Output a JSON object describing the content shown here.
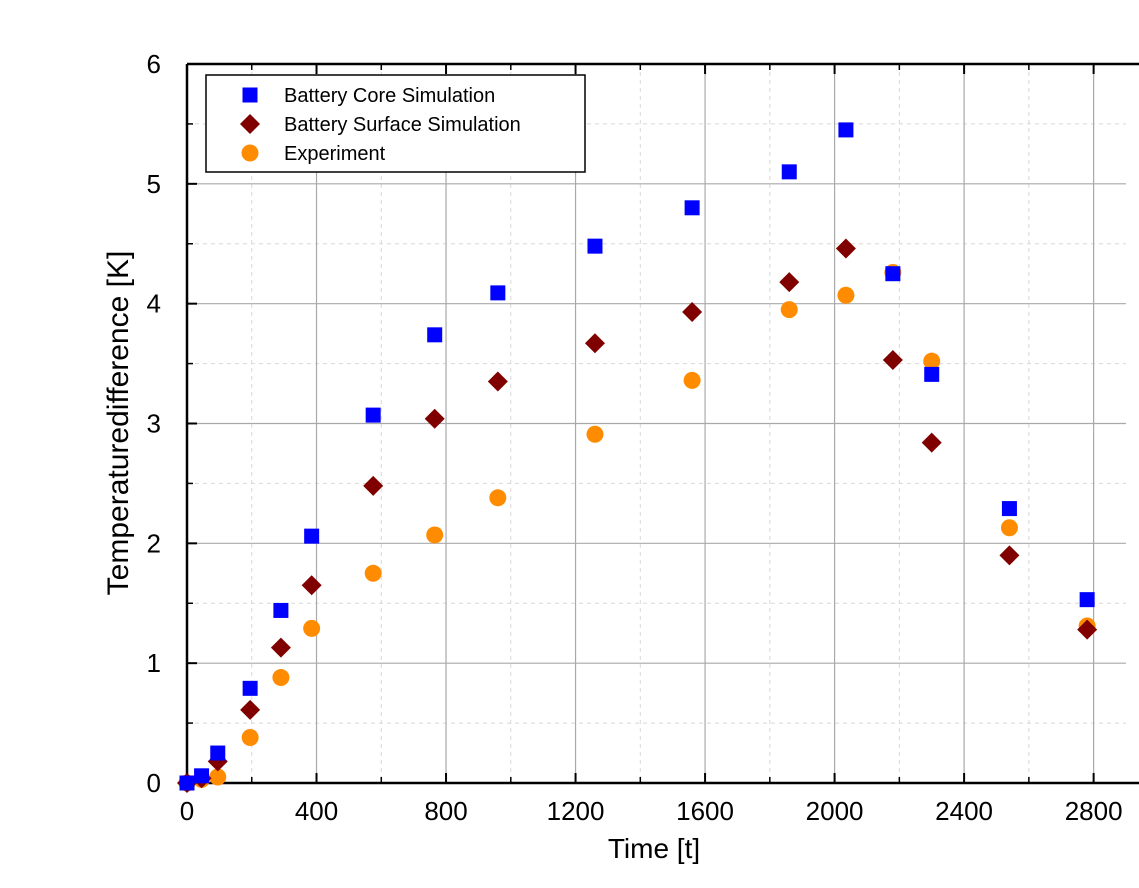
{
  "chart_data": {
    "type": "scatter",
    "title": "",
    "xlabel": "Time [t]",
    "ylabel": "Temperaturedifference [K]",
    "xlim": [
      0,
      2900
    ],
    "ylim": [
      0,
      6
    ],
    "xticks": [
      0,
      400,
      800,
      1200,
      1600,
      2000,
      2400,
      2800
    ],
    "yticks": [
      0,
      1,
      2,
      3,
      4,
      5,
      6
    ],
    "grid": true,
    "legend_position": "top-left",
    "series": [
      {
        "name": "Battery Core Simulation",
        "marker": "square",
        "color": "#0000ff",
        "points": [
          [
            0,
            0.0
          ],
          [
            45,
            0.06
          ],
          [
            95,
            0.25
          ],
          [
            195,
            0.79
          ],
          [
            290,
            1.44
          ],
          [
            385,
            2.06
          ],
          [
            575,
            3.07
          ],
          [
            765,
            3.74
          ],
          [
            960,
            4.09
          ],
          [
            1260,
            4.48
          ],
          [
            1560,
            4.8
          ],
          [
            1860,
            5.1
          ],
          [
            2035,
            5.45
          ],
          [
            2180,
            4.25
          ],
          [
            2300,
            3.41
          ],
          [
            2540,
            2.29
          ],
          [
            2780,
            1.53
          ]
        ]
      },
      {
        "name": "Battery Surface Simulation",
        "marker": "diamond",
        "color": "#800000",
        "points": [
          [
            0,
            0.0
          ],
          [
            45,
            0.04
          ],
          [
            95,
            0.18
          ],
          [
            195,
            0.61
          ],
          [
            290,
            1.13
          ],
          [
            385,
            1.65
          ],
          [
            575,
            2.48
          ],
          [
            765,
            3.04
          ],
          [
            960,
            3.35
          ],
          [
            1260,
            3.67
          ],
          [
            1560,
            3.93
          ],
          [
            1860,
            4.18
          ],
          [
            2035,
            4.46
          ],
          [
            2180,
            3.53
          ],
          [
            2300,
            2.84
          ],
          [
            2540,
            1.9
          ],
          [
            2780,
            1.28
          ]
        ]
      },
      {
        "name": "Experiment",
        "marker": "circle",
        "color": "#ff8c00",
        "points": [
          [
            0,
            0.0
          ],
          [
            45,
            0.03
          ],
          [
            95,
            0.05
          ],
          [
            195,
            0.38
          ],
          [
            290,
            0.88
          ],
          [
            385,
            1.29
          ],
          [
            575,
            1.75
          ],
          [
            765,
            2.07
          ],
          [
            960,
            2.38
          ],
          [
            1260,
            2.91
          ],
          [
            1560,
            3.36
          ],
          [
            1860,
            3.95
          ],
          [
            2035,
            4.07
          ],
          [
            2180,
            4.26
          ],
          [
            2300,
            3.52
          ],
          [
            2540,
            2.13
          ],
          [
            2780,
            1.31
          ]
        ]
      }
    ]
  }
}
